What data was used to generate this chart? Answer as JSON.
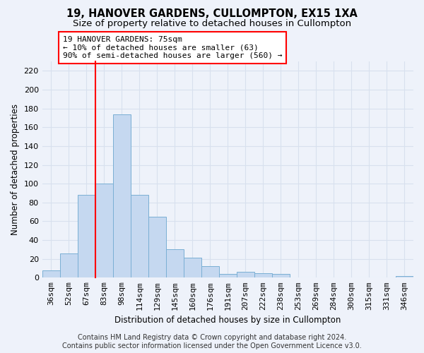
{
  "title": "19, HANOVER GARDENS, CULLOMPTON, EX15 1XA",
  "subtitle": "Size of property relative to detached houses in Cullompton",
  "xlabel": "Distribution of detached houses by size in Cullompton",
  "ylabel": "Number of detached properties",
  "categories": [
    "36sqm",
    "52sqm",
    "67sqm",
    "83sqm",
    "98sqm",
    "114sqm",
    "129sqm",
    "145sqm",
    "160sqm",
    "176sqm",
    "191sqm",
    "207sqm",
    "222sqm",
    "238sqm",
    "253sqm",
    "269sqm",
    "284sqm",
    "300sqm",
    "315sqm",
    "331sqm",
    "346sqm"
  ],
  "values": [
    8,
    26,
    88,
    100,
    174,
    88,
    65,
    30,
    21,
    12,
    4,
    6,
    5,
    4,
    0,
    0,
    0,
    0,
    0,
    0,
    2
  ],
  "bar_color": "#c5d8f0",
  "bar_edgecolor": "#7aafd4",
  "ylim": [
    0,
    230
  ],
  "yticks": [
    0,
    20,
    40,
    60,
    80,
    100,
    120,
    140,
    160,
    180,
    200,
    220
  ],
  "property_label": "19 HANOVER GARDENS: 75sqm",
  "annotation_line1": "← 10% of detached houses are smaller (63)",
  "annotation_line2": "90% of semi-detached houses are larger (560) →",
  "vline_x_index": 2.5,
  "footer_line1": "Contains HM Land Registry data © Crown copyright and database right 2024.",
  "footer_line2": "Contains public sector information licensed under the Open Government Licence v3.0.",
  "background_color": "#eef2fa",
  "grid_color": "#d8e0ee",
  "title_fontsize": 10.5,
  "subtitle_fontsize": 9.5,
  "axis_label_fontsize": 8.5,
  "tick_fontsize": 8,
  "annotation_fontsize": 8,
  "footer_fontsize": 7
}
